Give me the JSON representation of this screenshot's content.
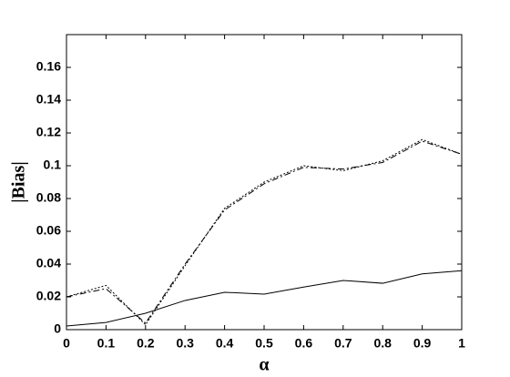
{
  "chart_data": {
    "type": "line",
    "xlabel": "α",
    "ylabel": "|Bias|",
    "x": [
      0,
      0.1,
      0.2,
      0.3,
      0.4,
      0.5,
      0.6,
      0.7,
      0.8,
      0.9,
      1
    ],
    "series": [
      {
        "color": "#000000",
        "style": "solid",
        "values": [
          0.0022,
          0.0044,
          0.01,
          0.0178,
          0.0228,
          0.0217,
          0.026,
          0.03,
          0.0283,
          0.034,
          0.036
        ]
      },
      {
        "color": "#000000",
        "style": "dashed",
        "values": [
          0.02,
          0.025,
          0.004,
          0.04,
          0.073,
          0.089,
          0.099,
          0.098,
          0.102,
          0.115,
          0.107
        ]
      },
      {
        "color": "#000000",
        "style": "dotted",
        "values": [
          0.02,
          0.027,
          0.003,
          0.039,
          0.074,
          0.09,
          0.1,
          0.097,
          0.103,
          0.116,
          0.107
        ]
      }
    ],
    "xlim": [
      0,
      1
    ],
    "xticks": [
      0,
      0.1,
      0.2,
      0.3,
      0.4,
      0.5,
      0.6,
      0.7,
      0.8,
      0.9,
      1
    ],
    "ylim": [
      0,
      0.18
    ],
    "yticks": [
      0,
      0.02,
      0.04,
      0.06,
      0.08,
      0.1,
      0.12,
      0.14,
      0.16
    ],
    "grid": false
  }
}
